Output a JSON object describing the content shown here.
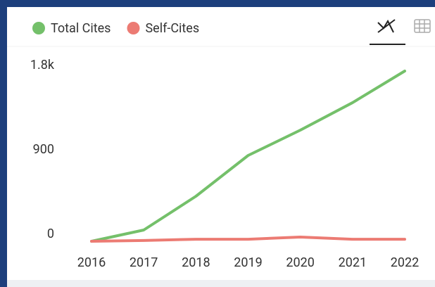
{
  "chart_data": {
    "type": "line",
    "categories": [
      "2016",
      "2017",
      "2018",
      "2019",
      "2020",
      "2021",
      "2022"
    ],
    "series": [
      {
        "name": "Total Cites",
        "color": "#74c06a",
        "values": [
          0,
          120,
          480,
          915,
          1185,
          1478,
          1815
        ]
      },
      {
        "name": "Self-Cites",
        "color": "#ec7b73",
        "values": [
          0,
          8,
          22,
          22,
          45,
          22,
          22
        ]
      }
    ],
    "ylim": [
      0,
      1800
    ],
    "yticks": [
      0,
      900,
      {
        "value": 1800,
        "label": "1.8k"
      }
    ],
    "grid": false
  }
}
